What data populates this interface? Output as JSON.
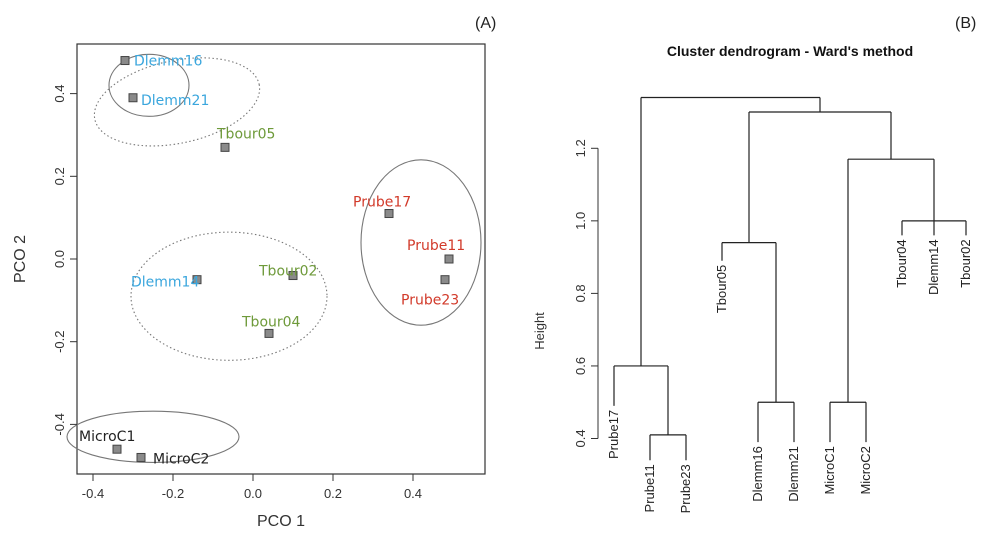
{
  "panels": {
    "a_tag": "(A)",
    "b_tag": "(B)"
  },
  "chart_data": [
    {
      "type": "scatter",
      "title": "",
      "xlabel": "PCO 1",
      "ylabel": "PCO 2",
      "xlim": [
        -0.44,
        0.58
      ],
      "ylim": [
        -0.52,
        0.52
      ],
      "xticks": [
        -0.4,
        -0.2,
        0.0,
        0.2,
        0.4
      ],
      "xtick_labels": [
        "-0.4",
        "-0.2",
        "0.0",
        "0.2",
        "0.4"
      ],
      "yticks": [
        -0.4,
        -0.2,
        0.0,
        0.2,
        0.4
      ],
      "ytick_labels": [
        "-0.4",
        "-0.2",
        "0.0",
        "0.2",
        "0.4"
      ],
      "grid": false,
      "points": [
        {
          "label": "Dlemm16",
          "x": -0.32,
          "y": 0.48,
          "color": "#3aa6dd"
        },
        {
          "label": "Dlemm21",
          "x": -0.3,
          "y": 0.39,
          "color": "#3aa6dd"
        },
        {
          "label": "Tbour05",
          "x": -0.07,
          "y": 0.27,
          "color": "#6e9a3a"
        },
        {
          "label": "Prube17",
          "x": 0.34,
          "y": 0.11,
          "color": "#d23a2a"
        },
        {
          "label": "Prube11",
          "x": 0.49,
          "y": 0.0,
          "color": "#d23a2a"
        },
        {
          "label": "Prube23",
          "x": 0.48,
          "y": -0.05,
          "color": "#d23a2a"
        },
        {
          "label": "Dlemm14",
          "x": -0.14,
          "y": -0.05,
          "color": "#3aa6dd"
        },
        {
          "label": "Tbour02",
          "x": 0.1,
          "y": -0.04,
          "color": "#6e9a3a"
        },
        {
          "label": "Tbour04",
          "x": 0.04,
          "y": -0.18,
          "color": "#6e9a3a"
        },
        {
          "label": "MicroC1",
          "x": -0.34,
          "y": -0.46,
          "color": "#222222"
        },
        {
          "label": "MicroC2",
          "x": -0.28,
          "y": -0.48,
          "color": "#222222"
        }
      ],
      "ellipses": [
        {
          "cx": -0.26,
          "cy": 0.42,
          "rx": 0.1,
          "ry": 0.075,
          "rotate": 0,
          "style": "solid"
        },
        {
          "cx": -0.19,
          "cy": 0.38,
          "rx": 0.21,
          "ry": 0.1,
          "rotate": -12,
          "style": "dotted"
        },
        {
          "cx": 0.42,
          "cy": 0.04,
          "rx": 0.15,
          "ry": 0.2,
          "rotate": 0,
          "style": "solid"
        },
        {
          "cx": -0.06,
          "cy": -0.09,
          "rx": 0.245,
          "ry": 0.155,
          "rotate": 0,
          "style": "dotted"
        },
        {
          "cx": -0.25,
          "cy": -0.43,
          "rx": 0.215,
          "ry": 0.062,
          "rotate": 0,
          "style": "solid"
        }
      ]
    },
    {
      "type": "dendrogram",
      "title": "Cluster dendrogram - Ward's method",
      "ylabel": "Height",
      "ylim": [
        0.36,
        1.38
      ],
      "yticks": [
        0.4,
        0.6,
        0.8,
        1.0,
        1.2
      ],
      "ytick_labels": [
        "0.4",
        "0.6",
        "0.8",
        "1.0",
        "1.2"
      ],
      "leaves": [
        {
          "label": "Prube17",
          "leaf_y": 0.49
        },
        {
          "label": "Prube11",
          "leaf_y": 0.34
        },
        {
          "label": "Prube23",
          "leaf_y": 0.34
        },
        {
          "label": "Tbour05",
          "leaf_y": 0.89
        },
        {
          "label": "Dlemm16",
          "leaf_y": 0.39
        },
        {
          "label": "Dlemm21",
          "leaf_y": 0.39
        },
        {
          "label": "MicroC1",
          "leaf_y": 0.39
        },
        {
          "label": "MicroC2",
          "leaf_y": 0.39
        },
        {
          "label": "Tbour04",
          "leaf_y": 0.96
        },
        {
          "label": "Dlemm14",
          "leaf_y": 0.96
        },
        {
          "label": "Tbour02",
          "leaf_y": 0.96
        }
      ],
      "merges": [
        {
          "id": "n1",
          "height": 0.41,
          "children": [
            "L1",
            "L2"
          ]
        },
        {
          "id": "n2",
          "height": 0.6,
          "children": [
            "L0",
            "n1"
          ]
        },
        {
          "id": "n3",
          "height": 0.5,
          "children": [
            "L4",
            "L5"
          ]
        },
        {
          "id": "n4",
          "height": 0.94,
          "children": [
            "L3",
            "n3"
          ]
        },
        {
          "id": "n5",
          "height": 0.5,
          "children": [
            "L6",
            "L7"
          ]
        },
        {
          "id": "n6",
          "height": 1.0,
          "children": [
            "L8",
            "L9",
            "L10"
          ]
        },
        {
          "id": "n7",
          "height": 1.17,
          "children": [
            "n5",
            "n6"
          ]
        },
        {
          "id": "n8",
          "height": 1.3,
          "children": [
            "n4",
            "n7"
          ]
        },
        {
          "id": "n9",
          "height": 1.34,
          "children": [
            "n2",
            "n8"
          ]
        }
      ]
    }
  ]
}
